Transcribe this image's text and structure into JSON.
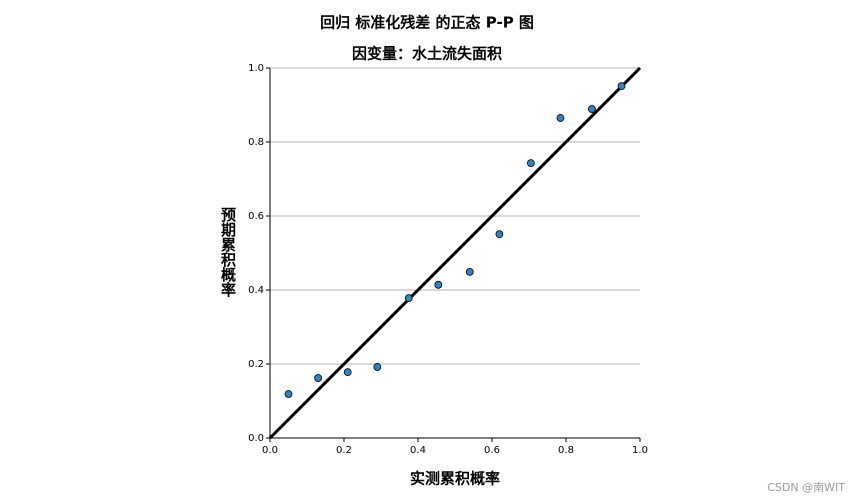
{
  "chart_data": {
    "type": "scatter",
    "title": "回归 标准化残差 的正态 P-P 图",
    "subtitle": "因变量：水土流失面积",
    "x_label": "实测累积概率",
    "y_label": "预期累积概率",
    "x": [
      0.05,
      0.13,
      0.21,
      0.29,
      0.375,
      0.455,
      0.54,
      0.62,
      0.705,
      0.785,
      0.87,
      0.95
    ],
    "values": [
      0.119,
      0.162,
      0.178,
      0.192,
      0.378,
      0.414,
      0.449,
      0.551,
      0.743,
      0.865,
      0.889,
      0.951
    ],
    "color": "#2a86c8",
    "xlim": [
      0,
      1
    ],
    "ylim": [
      0,
      1
    ],
    "xticks": [
      {
        "value": 0,
        "label": "0.0"
      },
      {
        "value": 0.2,
        "label": "0.2"
      },
      {
        "value": 0.4,
        "label": "0.4"
      },
      {
        "value": 0.6,
        "label": "0.6"
      },
      {
        "value": 0.8,
        "label": "0.8"
      },
      {
        "value": 1,
        "label": "1.0"
      }
    ],
    "yticks": [
      {
        "value": 0,
        "label": "0.0"
      },
      {
        "value": 0.2,
        "label": "0.2"
      },
      {
        "value": 0.4,
        "label": "0.4"
      },
      {
        "value": 0.6,
        "label": "0.6"
      },
      {
        "value": 0.8,
        "label": "0.8"
      },
      {
        "value": 1,
        "label": "1.0"
      }
    ],
    "grid": true,
    "watermark": "CSDN @南WIT"
  }
}
